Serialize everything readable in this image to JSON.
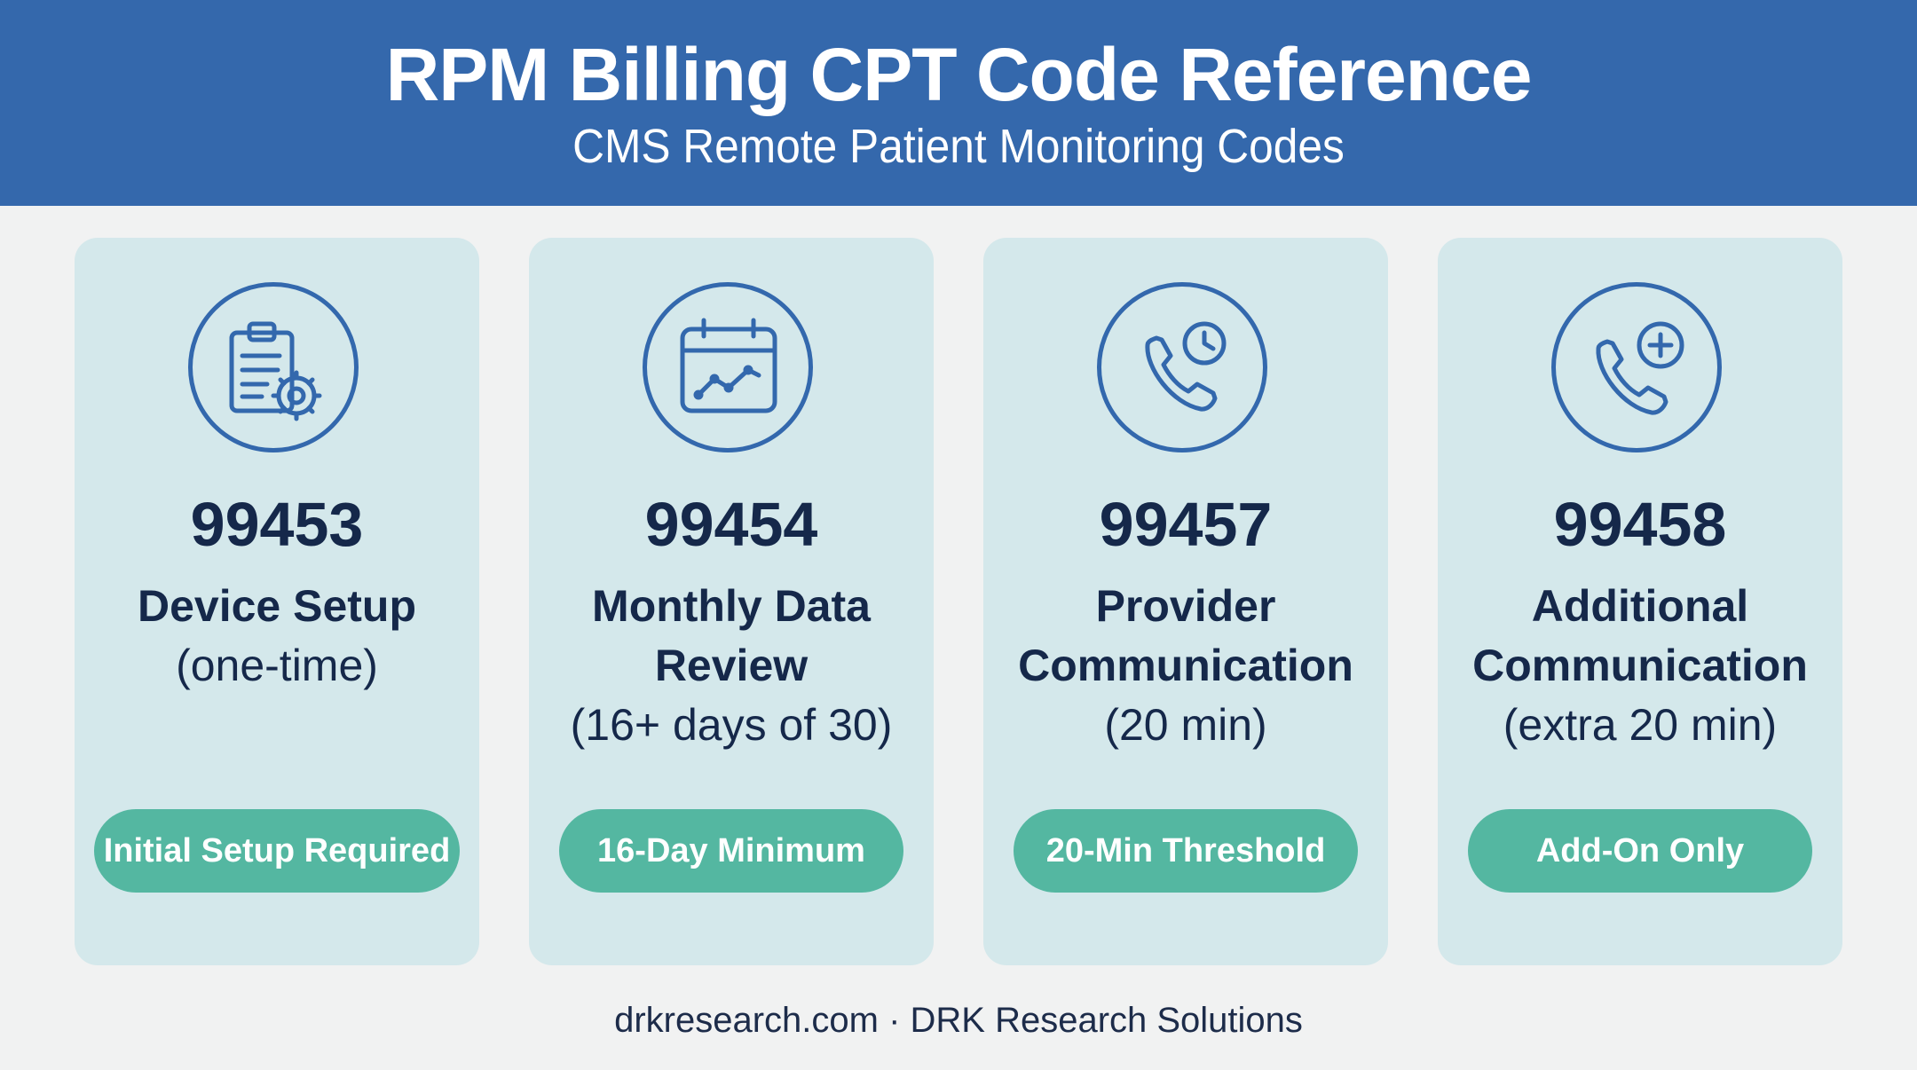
{
  "header": {
    "title": "RPM Billing CPT Code Reference",
    "subtitle": "CMS Remote Patient Monitoring Codes"
  },
  "cards": [
    {
      "code": "99453",
      "label": "Device Setup",
      "note": "(one-time)",
      "badge": "Initial Setup Required",
      "icon": "clipboard-gear-icon"
    },
    {
      "code": "99454",
      "label": "Monthly Data Review",
      "note": "(16+ days of 30)",
      "badge": "16-Day Minimum",
      "icon": "calendar-chart-icon"
    },
    {
      "code": "99457",
      "label": "Provider Communication",
      "note": "(20 min)",
      "badge": "20-Min Threshold",
      "icon": "phone-clock-icon"
    },
    {
      "code": "99458",
      "label": "Additional Communication",
      "note": "(extra 20 min)",
      "badge": "Add-On Only",
      "icon": "phone-plus-icon"
    }
  ],
  "footer": "drkresearch.com · DRK Research Solutions",
  "colors": {
    "header_bg": "#3468ac",
    "card_bg": "#d4e8eb",
    "badge_bg": "#54b7a1",
    "text": "#15284a",
    "icon_stroke": "#3368ad"
  }
}
